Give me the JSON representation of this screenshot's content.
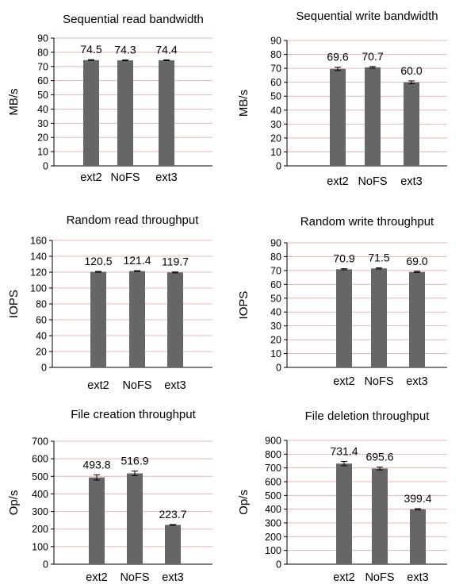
{
  "chart_data": [
    {
      "type": "bar",
      "title": "Sequential read bandwidth",
      "ylabel": "MB/s",
      "categories": [
        "ext2",
        "NoFS",
        "ext3"
      ],
      "values": [
        74.5,
        74.3,
        74.4
      ],
      "value_labels": [
        "74.5",
        "74.3",
        "74.4"
      ],
      "errors": [
        0.3,
        0.3,
        0.3
      ],
      "ylim": [
        0,
        90
      ],
      "yticks": [
        "0",
        "10",
        "20",
        "30",
        "40",
        "50",
        "60",
        "70",
        "80",
        "90"
      ],
      "grid": true,
      "bar_color": "#666666",
      "grid_color": "#e8b4b4"
    },
    {
      "type": "bar",
      "title": "Sequential write bandwidth",
      "ylabel": "MB/s",
      "categories": [
        "ext2",
        "NoFS",
        "ext3"
      ],
      "values": [
        69.6,
        70.7,
        60.0
      ],
      "value_labels": [
        "69.6",
        "70.7",
        "60.0"
      ],
      "errors": [
        1.2,
        0.6,
        1.0
      ],
      "ylim": [
        0,
        90
      ],
      "yticks": [
        "0",
        "10",
        "20",
        "30",
        "40",
        "50",
        "60",
        "70",
        "80",
        "90"
      ],
      "grid": true,
      "bar_color": "#666666",
      "grid_color": "#e8b4b4"
    },
    {
      "type": "bar",
      "title": "Random read throughput",
      "ylabel": "IOPS",
      "categories": [
        "ext2",
        "NoFS",
        "ext3"
      ],
      "values": [
        120.5,
        121.4,
        119.7
      ],
      "value_labels": [
        "120.5",
        "121.4",
        "119.7"
      ],
      "errors": [
        0.6,
        0.5,
        0.6
      ],
      "ylim": [
        0,
        160
      ],
      "yticks": [
        "0",
        "20",
        "40",
        "60",
        "80",
        "100",
        "120",
        "140",
        "160"
      ],
      "grid": true,
      "bar_color": "#666666",
      "grid_color": "#e8b4b4"
    },
    {
      "type": "bar",
      "title": "Random write throughput",
      "ylabel": "IOPS",
      "categories": [
        "ext2",
        "NoFS",
        "ext3"
      ],
      "values": [
        70.9,
        71.5,
        69.0
      ],
      "value_labels": [
        "70.9",
        "71.5",
        "69.0"
      ],
      "errors": [
        0.4,
        0.4,
        0.4
      ],
      "ylim": [
        0,
        90
      ],
      "yticks": [
        "0",
        "10",
        "20",
        "30",
        "40",
        "50",
        "60",
        "70",
        "80",
        "90"
      ],
      "grid": true,
      "bar_color": "#666666",
      "grid_color": "#e8b4b4"
    },
    {
      "type": "bar",
      "title": "File creation throughput",
      "ylabel": "Op/s",
      "categories": [
        "ext2",
        "NoFS",
        "ext3"
      ],
      "values": [
        493.8,
        516.9,
        223.7
      ],
      "value_labels": [
        "493.8",
        "516.9",
        "223.7"
      ],
      "errors": [
        15,
        13,
        2
      ],
      "ylim": [
        0,
        700
      ],
      "yticks": [
        "0",
        "100",
        "200",
        "300",
        "400",
        "500",
        "600",
        "700"
      ],
      "grid": true,
      "bar_color": "#666666",
      "grid_color": "#e8b4b4"
    },
    {
      "type": "bar",
      "title": "File deletion throughput",
      "ylabel": "Op/s",
      "categories": [
        "ext2",
        "NoFS",
        "ext3"
      ],
      "values": [
        731.4,
        695.6,
        399.4
      ],
      "value_labels": [
        "731.4",
        "695.6",
        "399.4"
      ],
      "errors": [
        15,
        10,
        5
      ],
      "ylim": [
        0,
        900
      ],
      "yticks": [
        "0",
        "100",
        "200",
        "300",
        "400",
        "500",
        "600",
        "700",
        "800",
        "900"
      ],
      "grid": true,
      "bar_color": "#666666",
      "grid_color": "#e8b4b4"
    }
  ]
}
